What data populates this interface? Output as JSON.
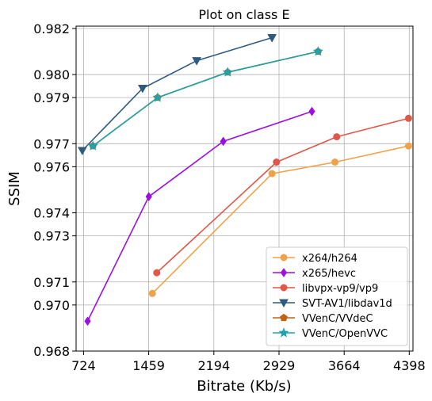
{
  "chart_data": {
    "type": "line",
    "title": "Plot on class E",
    "xlabel": "Bitrate (Kb/s)",
    "ylabel": "SSIM",
    "xlim": [
      640,
      4440
    ],
    "ylim": [
      0.968,
      0.9821
    ],
    "x_ticks": [
      724,
      1459,
      2194,
      2929,
      3664,
      4398
    ],
    "x_tick_labels": [
      "724",
      "1459",
      "2194",
      "2929",
      "3664",
      "4398"
    ],
    "y_ticks": [
      0.968,
      0.97,
      0.971,
      0.973,
      0.974,
      0.976,
      0.977,
      0.979,
      0.98,
      0.982
    ],
    "y_tick_labels": [
      "0.968",
      "0.970",
      "0.971",
      "0.973",
      "0.974",
      "0.976",
      "0.977",
      "0.979",
      "0.980",
      "0.982"
    ],
    "grid": true,
    "legend_position": "bottom-right",
    "series": [
      {
        "name": "x264/h264",
        "color": "#f0a24a",
        "marker": "circle",
        "points": [
          [
            1500,
            0.9705
          ],
          [
            2850,
            0.9757
          ],
          [
            3560,
            0.9762
          ],
          [
            4390,
            0.9769
          ]
        ]
      },
      {
        "name": "x265/hevc",
        "color": "#9b10e0",
        "marker": "diamond",
        "points": [
          [
            770,
            0.9693
          ],
          [
            1460,
            0.9747
          ],
          [
            2300,
            0.9771
          ],
          [
            3300,
            0.9784
          ]
        ]
      },
      {
        "name": "libvpx-vp9/vp9",
        "color": "#e0584a",
        "marker": "circle",
        "points": [
          [
            1550,
            0.9714
          ],
          [
            2900,
            0.9762
          ],
          [
            3580,
            0.9773
          ],
          [
            4390,
            0.9781
          ]
        ]
      },
      {
        "name": "SVT-AV1/libdav1d",
        "color": "#2e5a7f",
        "marker": "triangle-down",
        "points": [
          [
            710,
            0.9767
          ],
          [
            1390,
            0.9794
          ],
          [
            2000,
            0.9806
          ],
          [
            2850,
            0.9816
          ]
        ]
      },
      {
        "name": "VVenC/VVdeC",
        "color": "#c0620e",
        "marker": "pentagon",
        "points": [
          [
            830,
            0.9769
          ],
          [
            1560,
            0.979
          ],
          [
            2350,
            0.9801
          ],
          [
            3370,
            0.981
          ]
        ]
      },
      {
        "name": "VVenC/OpenVVC",
        "color": "#20a3a8",
        "marker": "star",
        "points": [
          [
            830,
            0.9769
          ],
          [
            1560,
            0.979
          ],
          [
            2350,
            0.9801
          ],
          [
            3370,
            0.981
          ]
        ]
      }
    ]
  }
}
